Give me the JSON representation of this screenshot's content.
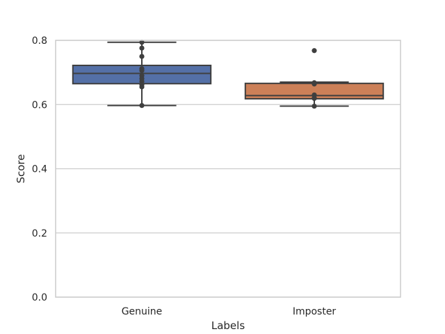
{
  "chart_data": {
    "type": "box",
    "title": "",
    "xlabel": "Labels",
    "ylabel": "Score",
    "ylim": [
      0.0,
      0.8
    ],
    "yticks": [
      "0.0",
      "0.2",
      "0.4",
      "0.6",
      "0.8"
    ],
    "grid": "horizontal",
    "categories": [
      "Genuine",
      "Imposter"
    ],
    "boxes": [
      {
        "category": "Genuine",
        "color": "#5470a7",
        "whisker_low": 0.597,
        "q1": 0.665,
        "median": 0.697,
        "q3": 0.722,
        "whisker_high": 0.794,
        "points": [
          0.794,
          0.776,
          0.75,
          0.712,
          0.706,
          0.69,
          0.681,
          0.672,
          0.662,
          0.655,
          0.597
        ]
      },
      {
        "category": "Imposter",
        "color": "#cc8058",
        "whisker_low": 0.595,
        "q1": 0.618,
        "median": 0.628,
        "q3": 0.666,
        "whisker_high": 0.67,
        "points": [
          0.768,
          0.668,
          0.664,
          0.63,
          0.621,
          0.619,
          0.595
        ]
      }
    ]
  }
}
